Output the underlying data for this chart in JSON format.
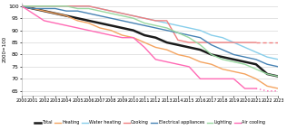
{
  "years": [
    2000,
    2001,
    2002,
    2003,
    2004,
    2005,
    2006,
    2007,
    2008,
    2009,
    2010,
    2011,
    2012,
    2013,
    2014,
    2015,
    2016,
    2017,
    2018,
    2019,
    2020,
    2021,
    2022,
    2023
  ],
  "series": {
    "Total": [
      100,
      99,
      98,
      97,
      96,
      95,
      94,
      93,
      92,
      91,
      90,
      88,
      87,
      85,
      84,
      83,
      82,
      80,
      79,
      78,
      77,
      76,
      72,
      71
    ],
    "Heating": [
      100,
      99,
      98,
      97,
      96,
      94,
      93,
      91,
      90,
      88,
      87,
      85,
      83,
      82,
      80,
      79,
      77,
      76,
      74,
      73,
      72,
      70,
      67,
      66
    ],
    "Water heating": [
      100,
      100,
      100,
      100,
      100,
      100,
      100,
      99,
      98,
      97,
      96,
      95,
      94,
      93,
      92,
      91,
      90,
      88,
      87,
      85,
      83,
      81,
      79,
      78
    ],
    "Cooking": [
      100,
      100,
      100,
      100,
      100,
      100,
      100,
      99,
      98,
      97,
      96,
      95,
      94,
      94,
      86,
      85,
      85,
      85,
      85,
      85,
      85,
      85,
      85,
      85
    ],
    "Electrical appliances": [
      100,
      99,
      99,
      99,
      98,
      98,
      97,
      96,
      95,
      94,
      93,
      92,
      91,
      90,
      89,
      88,
      87,
      84,
      82,
      80,
      79,
      78,
      76,
      75
    ],
    "Lighting": [
      100,
      100,
      100,
      100,
      100,
      99,
      99,
      98,
      97,
      96,
      95,
      93,
      92,
      91,
      89,
      87,
      84,
      80,
      78,
      77,
      76,
      74,
      72,
      71
    ],
    "Air cooling": [
      100,
      97,
      94,
      93,
      92,
      91,
      90,
      89,
      88,
      87,
      87,
      83,
      78,
      77,
      76,
      75,
      70,
      70,
      70,
      70,
      66,
      66,
      65,
      65
    ]
  },
  "colors": {
    "Total": "#1a1a1a",
    "Heating": "#f4a460",
    "Water heating": "#87ceeb",
    "Cooking": "#f08080",
    "Electrical appliances": "#4682b4",
    "Lighting": "#98d8a0",
    "Air cooling": "#ff69b4"
  },
  "linewidths": {
    "Total": 1.8,
    "Heating": 1.0,
    "Water heating": 1.0,
    "Cooking": 1.0,
    "Electrical appliances": 1.0,
    "Lighting": 1.0,
    "Air cooling": 1.0
  },
  "dashed_from_idx": 21,
  "ylim": [
    63,
    101.5
  ],
  "yticks": [
    65,
    70,
    75,
    80,
    85,
    90,
    95,
    100
  ],
  "ylabel": "2000=100",
  "legend_order": [
    "Total",
    "Heating",
    "Water heating",
    "Cooking",
    "Electrical appliances",
    "Lighting",
    "Air cooling"
  ],
  "background_color": "#ffffff",
  "grid_color": "#d8d8d8"
}
